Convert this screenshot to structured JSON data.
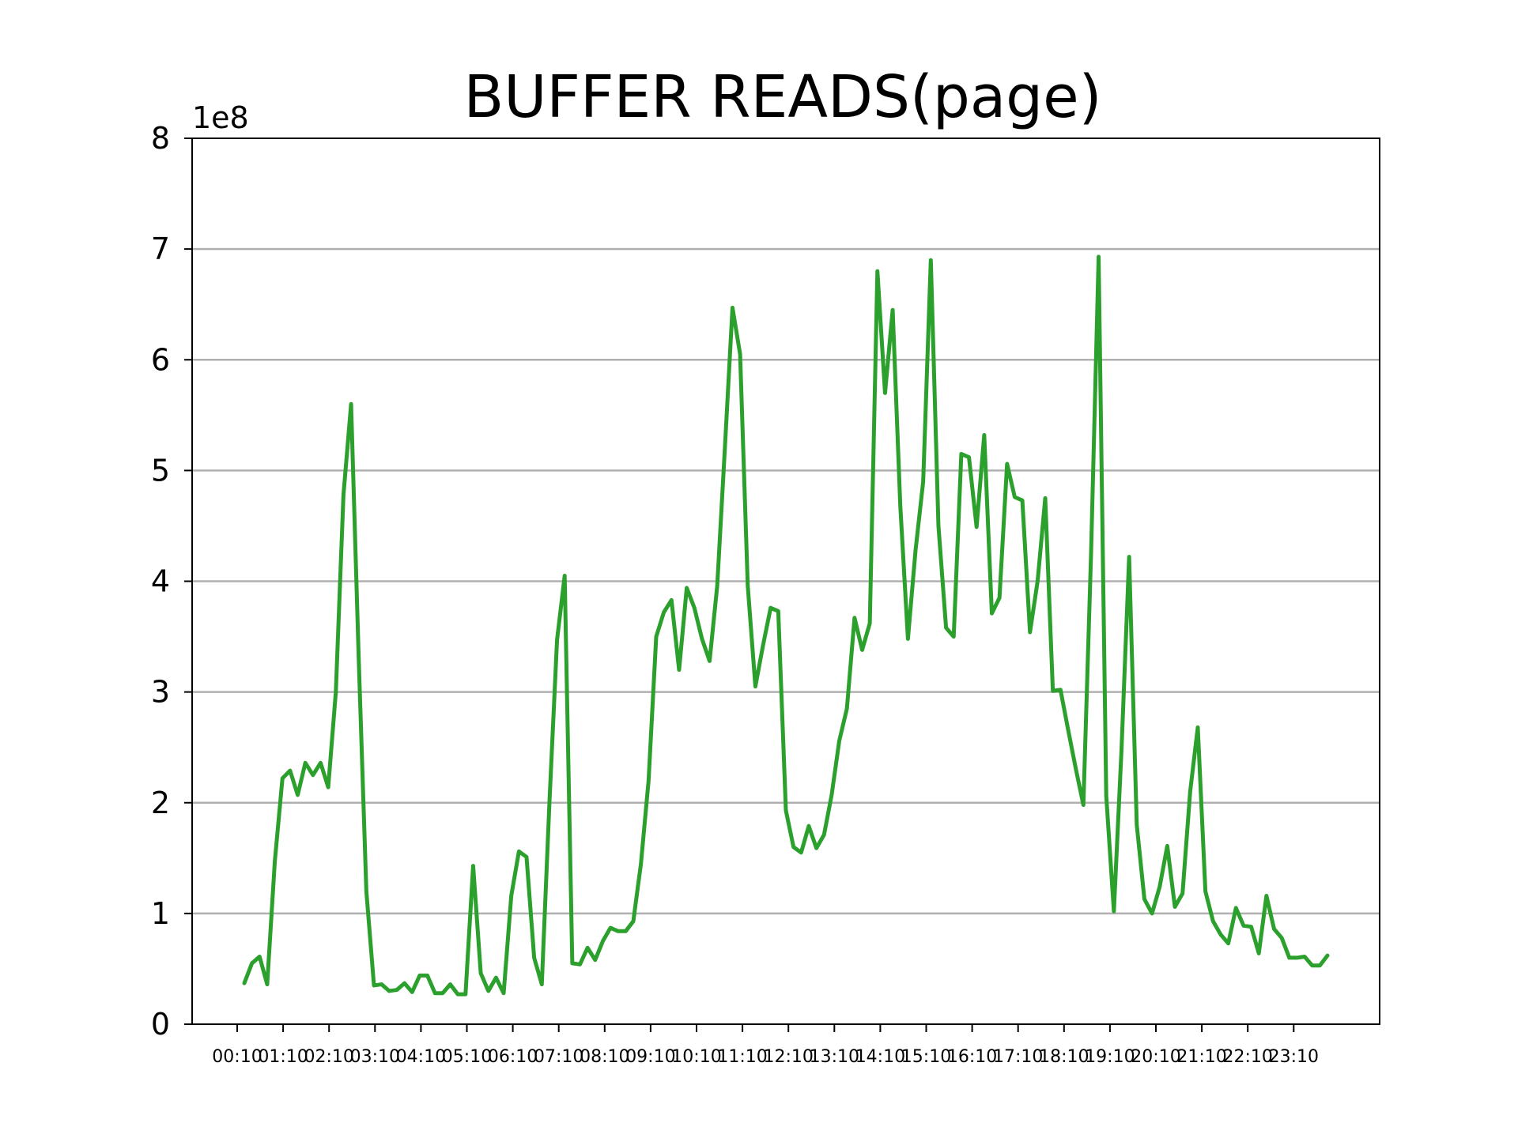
{
  "chart_data": {
    "type": "line",
    "title": "BUFFER READS(page)",
    "xlabel": "",
    "ylabel": "",
    "y_offset_label": "1e8",
    "ylim": [
      0,
      8
    ],
    "yticks": [
      "0",
      "1",
      "2",
      "3",
      "4",
      "5",
      "6",
      "7",
      "8"
    ],
    "xticks": [
      "00:10",
      "01:10",
      "02:10",
      "03:10",
      "04:10",
      "05:10",
      "06:10",
      "07:10",
      "08:10",
      "09:10",
      "10:10",
      "11:10",
      "12:10",
      "13:10",
      "14:10",
      "15:10",
      "16:10",
      "17:10",
      "18:10",
      "19:10",
      "20:10",
      "21:10",
      "22:10",
      "23:10"
    ],
    "grid": "horizontal",
    "line_color": "#2ca02c",
    "series": [
      {
        "values": [
          0.37,
          0.55,
          0.61,
          0.36,
          1.47,
          2.22,
          2.29,
          2.07,
          2.36,
          2.25,
          2.36,
          2.14,
          3.0,
          4.78,
          5.6,
          3.3,
          1.2,
          0.35,
          0.36,
          0.3,
          0.31,
          0.37,
          0.29,
          0.44,
          0.44,
          0.28,
          0.28,
          0.36,
          0.27,
          0.27,
          1.43,
          0.46,
          0.3,
          0.42,
          0.28,
          1.16,
          1.56,
          1.51,
          0.6,
          0.36,
          2.0,
          3.47,
          4.05,
          0.55,
          0.54,
          0.69,
          0.58,
          0.75,
          0.87,
          0.84,
          0.84,
          0.93,
          1.45,
          2.2,
          3.5,
          3.72,
          3.83,
          3.2,
          3.94,
          3.76,
          3.48,
          3.28,
          3.96,
          5.2,
          6.47,
          6.05,
          3.96,
          3.05,
          3.42,
          3.76,
          3.73,
          1.93,
          1.6,
          1.55,
          1.79,
          1.59,
          1.71,
          2.07,
          2.56,
          2.85,
          3.67,
          3.38,
          3.62,
          6.8,
          5.7,
          6.45,
          4.68,
          3.48,
          4.28,
          4.9,
          6.9,
          4.5,
          3.58,
          3.5,
          5.15,
          5.12,
          4.49,
          5.32,
          3.71,
          3.85,
          5.06,
          4.76,
          4.73,
          3.54,
          4.0,
          4.75,
          3.01,
          3.02,
          2.66,
          2.31,
          1.98,
          4.23,
          6.93,
          2.06,
          1.02,
          2.48,
          4.22,
          1.8,
          1.13,
          1.0,
          1.24,
          1.61,
          1.06,
          1.18,
          2.1,
          2.68,
          1.2,
          0.93,
          0.81,
          0.73,
          1.05,
          0.89,
          0.88,
          0.64,
          1.16,
          0.86,
          0.78,
          0.6,
          0.6,
          0.61,
          0.53,
          0.53,
          0.62
        ]
      }
    ]
  }
}
